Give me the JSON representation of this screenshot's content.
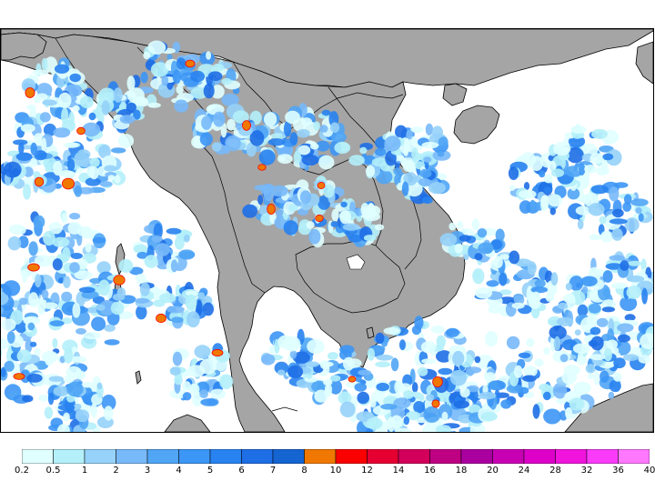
{
  "map": {
    "ocean_color": "#ffffff",
    "land_color": "#a5a5a5",
    "coast_color": "#000000"
  },
  "colorbar": {
    "colors": [
      "#e0ffff",
      "#b4f0fa",
      "#96d2fa",
      "#78b9fa",
      "#50a5f5",
      "#3c96f5",
      "#2882f0",
      "#1e6ee6",
      "#1464d2",
      "#f07800",
      "#fa0000",
      "#e60032",
      "#d2005a",
      "#be0082",
      "#aa00a0",
      "#c800b4",
      "#dc00c8",
      "#f014dc",
      "#fa3cfa",
      "#ff78ff"
    ],
    "labels": [
      "0.2",
      "0.5",
      "1",
      "2",
      "3",
      "4",
      "5",
      "6",
      "7",
      "8",
      "10",
      "12",
      "14",
      "16",
      "18",
      "20",
      "24",
      "28",
      "32",
      "36",
      "40"
    ]
  }
}
